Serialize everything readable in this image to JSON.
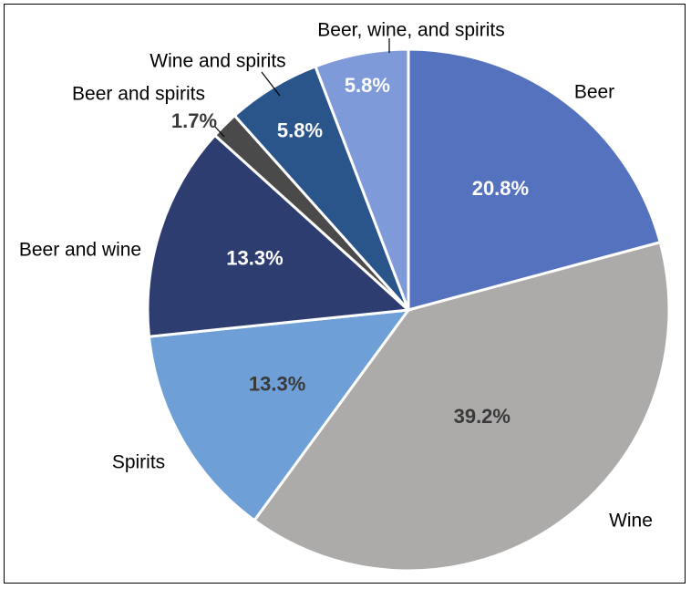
{
  "chart_data": {
    "type": "pie",
    "start_angle_deg": 0,
    "direction": "clockwise",
    "slices": [
      {
        "label": "Beer",
        "value": 20.8,
        "value_label": "20.8%",
        "color": "#5572BE",
        "label_color": "#FFFFFF"
      },
      {
        "label": "Wine",
        "value": 39.2,
        "value_label": "39.2%",
        "color": "#ADABAA",
        "label_color": "#3A3A3A"
      },
      {
        "label": "Spirits",
        "value": 13.3,
        "value_label": "13.3%",
        "color": "#6E9FD6",
        "label_color": "#3A3A3A"
      },
      {
        "label": "Beer and wine",
        "value": 13.3,
        "value_label": "13.3%",
        "color": "#2E3D70",
        "label_color": "#FFFFFF"
      },
      {
        "label": "Beer and spirits",
        "value": 1.7,
        "value_label": "1.7%",
        "color": "#4A4A4A",
        "label_color": "#3A3A3A"
      },
      {
        "label": "Wine and spirits",
        "value": 5.8,
        "value_label": "5.8%",
        "color": "#2A558A",
        "label_color": "#FFFFFF"
      },
      {
        "label": "Beer, wine, and spirits",
        "value": 5.8,
        "value_label": "5.8%",
        "color": "#7F9AD8",
        "label_color": "#FFFFFF"
      }
    ],
    "title": "",
    "legend": "none"
  },
  "colors": {
    "border": "#000000",
    "slice_separator": "#FFFFFF"
  }
}
